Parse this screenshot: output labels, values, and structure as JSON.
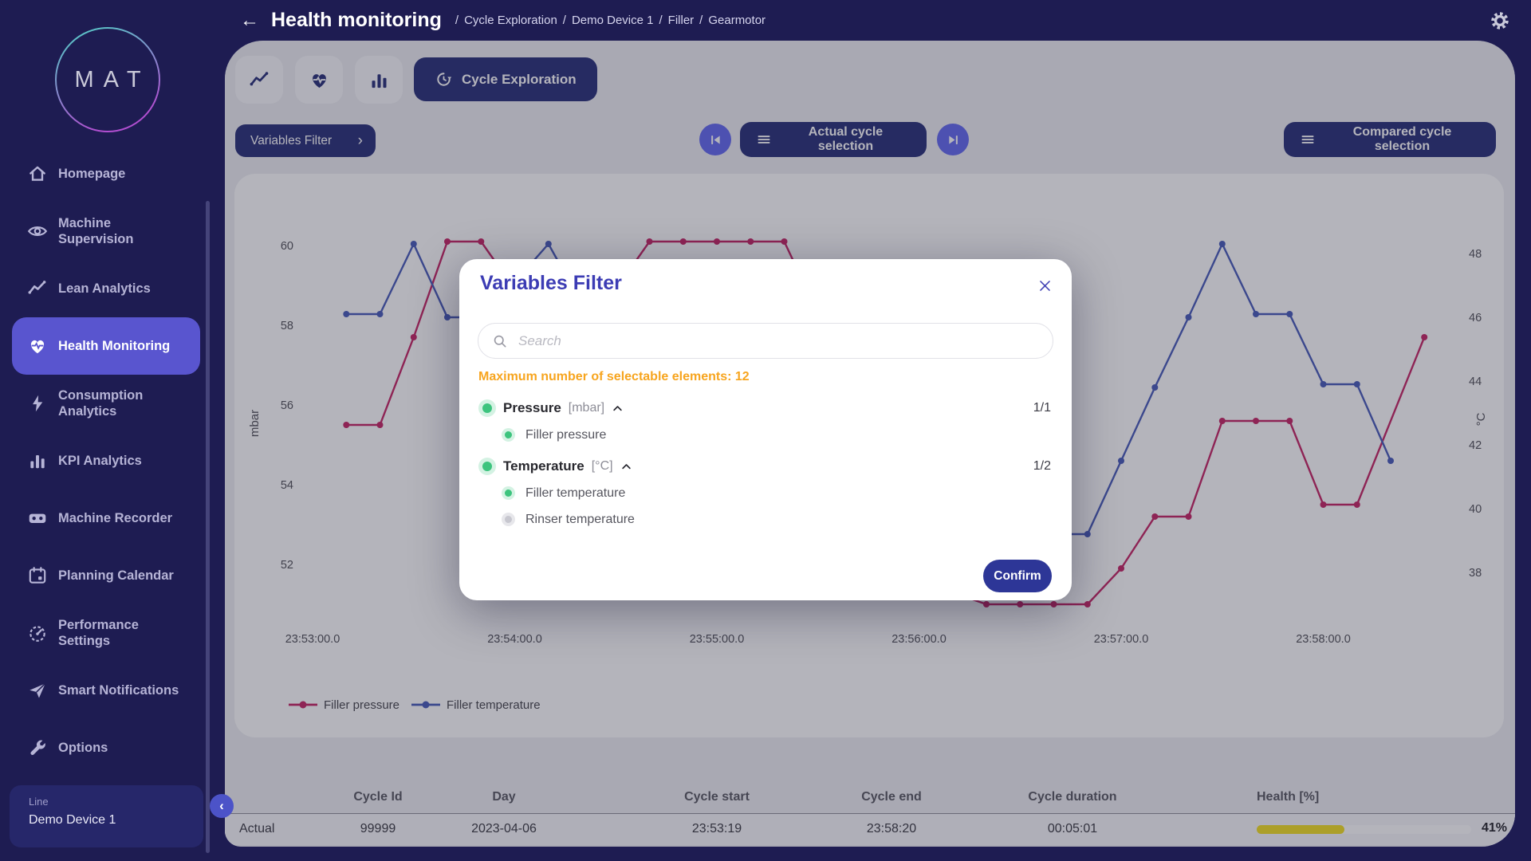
{
  "colors": {
    "pressure": "#c2185b",
    "temperature": "#3d51b5",
    "health_fill": "#f2dd14",
    "warning": "#f7a51f",
    "selected_green": "#3dc47e",
    "unselected_gray": "#c7c7cf",
    "accent_indigo": "#5955cf"
  },
  "logo": {
    "text": "MAT"
  },
  "header": {
    "back_icon": "←",
    "title": "Health monitoring",
    "breadcrumbs": [
      "Cycle Exploration",
      "Demo Device 1",
      "Filler",
      "Gearmotor"
    ]
  },
  "sidebar": {
    "items": [
      {
        "label": "Homepage",
        "icon": "home-icon",
        "active": false
      },
      {
        "label": "Machine Supervision",
        "icon": "eye-icon",
        "active": false
      },
      {
        "label": "Lean Analytics",
        "icon": "trend-icon",
        "active": false
      },
      {
        "label": "Health Monitoring",
        "icon": "heart-pulse-icon",
        "active": true
      },
      {
        "label": "Consumption Analytics",
        "icon": "bolt-icon",
        "active": false
      },
      {
        "label": "KPI Analytics",
        "icon": "bar-chart-icon",
        "active": false
      },
      {
        "label": "Machine Recorder",
        "icon": "recorder-icon",
        "active": false
      },
      {
        "label": "Planning Calendar",
        "icon": "calendar-icon",
        "active": false
      },
      {
        "label": "Performance Settings",
        "icon": "gauge-icon",
        "active": false
      },
      {
        "label": "Smart Notifications",
        "icon": "send-icon",
        "active": false
      },
      {
        "label": "Options",
        "icon": "wrench-icon",
        "active": false
      }
    ],
    "device": {
      "type_label": "Line",
      "name": "Demo Device 1"
    },
    "collapse_icon": "‹"
  },
  "toolbar": {
    "icon_tabs": [
      {
        "icon": "trend-icon"
      },
      {
        "icon": "heart-pulse-icon"
      },
      {
        "icon": "bar-chart-icon"
      }
    ],
    "active_tab": {
      "icon": "history-icon",
      "label": "Cycle Exploration"
    }
  },
  "controls": {
    "variables_filter": {
      "label": "Variables Filter",
      "chevron": "›"
    },
    "actual": {
      "label": "Actual cycle selection"
    },
    "compared": {
      "label": "Compared cycle selection"
    }
  },
  "modal": {
    "title": "Variables Filter",
    "search_placeholder": "Search",
    "max_note": "Maximum number of selectable elements: 12",
    "groups": [
      {
        "name": "Pressure",
        "unit": "[mbar]",
        "count": "1/1",
        "children": [
          {
            "name": "Filler pressure",
            "selected": true
          }
        ]
      },
      {
        "name": "Temperature",
        "unit": "[°C]",
        "count": "1/2",
        "children": [
          {
            "name": "Filler temperature",
            "selected": true
          },
          {
            "name": "Rinser temperature",
            "selected": false
          }
        ]
      }
    ],
    "confirm_label": "Confirm"
  },
  "chart_data": {
    "type": "line",
    "grid": false,
    "x_axis": {
      "start": "23:53:00",
      "tick_labels": [
        "23:53:00.0",
        "23:54:00.0",
        "23:55:00.0",
        "23:56:00.0",
        "23:57:00.0",
        "23:58:00.0"
      ]
    },
    "left_axis": {
      "label": "mbar",
      "ticks": [
        60,
        58,
        56,
        54,
        52
      ],
      "range": [
        50.6,
        60.4
      ]
    },
    "right_axis": {
      "label": "°C",
      "ticks": [
        48,
        46,
        44,
        42,
        40,
        38
      ],
      "range": [
        37.9,
        48.5
      ]
    },
    "legend": {
      "position": "bottom-left",
      "entries": [
        "Filler pressure",
        "Filler temperature"
      ]
    },
    "series": [
      {
        "name": "Filler pressure",
        "axis": "left",
        "color_key": "pressure",
        "points": [
          [
            "23:53:10",
            55.5
          ],
          [
            "23:53:20",
            55.5
          ],
          [
            "23:53:30",
            57.7
          ],
          [
            "23:53:40",
            60.1
          ],
          [
            "23:53:50",
            60.1
          ],
          [
            "23:54:00",
            58.9
          ],
          [
            "23:54:10",
            57.6
          ],
          [
            "23:54:20",
            57.6
          ],
          [
            "23:54:30",
            58.9
          ],
          [
            "23:54:40",
            60.1
          ],
          [
            "23:54:50",
            60.1
          ],
          [
            "23:55:00",
            60.1
          ],
          [
            "23:55:10",
            60.1
          ],
          [
            "23:55:20",
            60.1
          ],
          [
            "23:55:30",
            58.3
          ],
          [
            "23:55:40",
            56.2
          ],
          [
            "23:55:50",
            54.2
          ],
          [
            "23:56:00",
            52.4
          ],
          [
            "23:56:10",
            51.3
          ],
          [
            "23:56:20",
            51.0
          ],
          [
            "23:56:30",
            51.0
          ],
          [
            "23:56:40",
            51.0
          ],
          [
            "23:56:50",
            51.0
          ],
          [
            "23:57:00",
            51.9
          ],
          [
            "23:57:10",
            53.2
          ],
          [
            "23:57:20",
            53.2
          ],
          [
            "23:57:30",
            55.6
          ],
          [
            "23:57:40",
            55.6
          ],
          [
            "23:57:50",
            55.6
          ],
          [
            "23:58:00",
            53.5
          ],
          [
            "23:58:10",
            53.5
          ],
          [
            "23:58:30",
            57.7
          ]
        ]
      },
      {
        "name": "Filler temperature",
        "axis": "right",
        "color_key": "temperature",
        "points": [
          [
            "23:53:10",
            46.1
          ],
          [
            "23:53:20",
            46.1
          ],
          [
            "23:53:30",
            48.3
          ],
          [
            "23:53:40",
            46.0
          ],
          [
            "23:53:50",
            46.0
          ],
          [
            "23:54:00",
            47.1
          ],
          [
            "23:54:10",
            48.3
          ],
          [
            "23:54:20",
            46.4
          ],
          [
            "23:54:30",
            45.0
          ],
          [
            "23:54:40",
            43.8
          ],
          [
            "23:54:50",
            42.8
          ],
          [
            "23:55:00",
            42.0
          ],
          [
            "23:55:10",
            41.4
          ],
          [
            "23:55:20",
            40.8
          ],
          [
            "23:55:30",
            40.3
          ],
          [
            "23:55:40",
            39.9
          ],
          [
            "23:55:50",
            39.6
          ],
          [
            "23:56:00",
            39.4
          ],
          [
            "23:56:10",
            39.2
          ],
          [
            "23:56:20",
            39.2
          ],
          [
            "23:56:30",
            39.2
          ],
          [
            "23:56:40",
            39.2
          ],
          [
            "23:56:50",
            39.2
          ],
          [
            "23:57:00",
            41.5
          ],
          [
            "23:57:10",
            43.8
          ],
          [
            "23:57:20",
            46.0
          ],
          [
            "23:57:30",
            48.3
          ],
          [
            "23:57:40",
            46.1
          ],
          [
            "23:57:50",
            46.1
          ],
          [
            "23:58:00",
            43.9
          ],
          [
            "23:58:10",
            43.9
          ],
          [
            "23:58:20",
            41.5
          ]
        ]
      }
    ]
  },
  "table": {
    "headers": [
      "Cycle Id",
      "Day",
      "Cycle start",
      "Cycle end",
      "Cycle duration",
      "Health [%]"
    ],
    "rows": [
      {
        "name": "Actual",
        "cycle_id": "99999",
        "day": "2023-04-06",
        "cycle_start": "23:53:19",
        "cycle_end": "23:58:20",
        "cycle_duration": "00:05:01",
        "health_pct": 41,
        "health_label": "41%"
      }
    ]
  }
}
